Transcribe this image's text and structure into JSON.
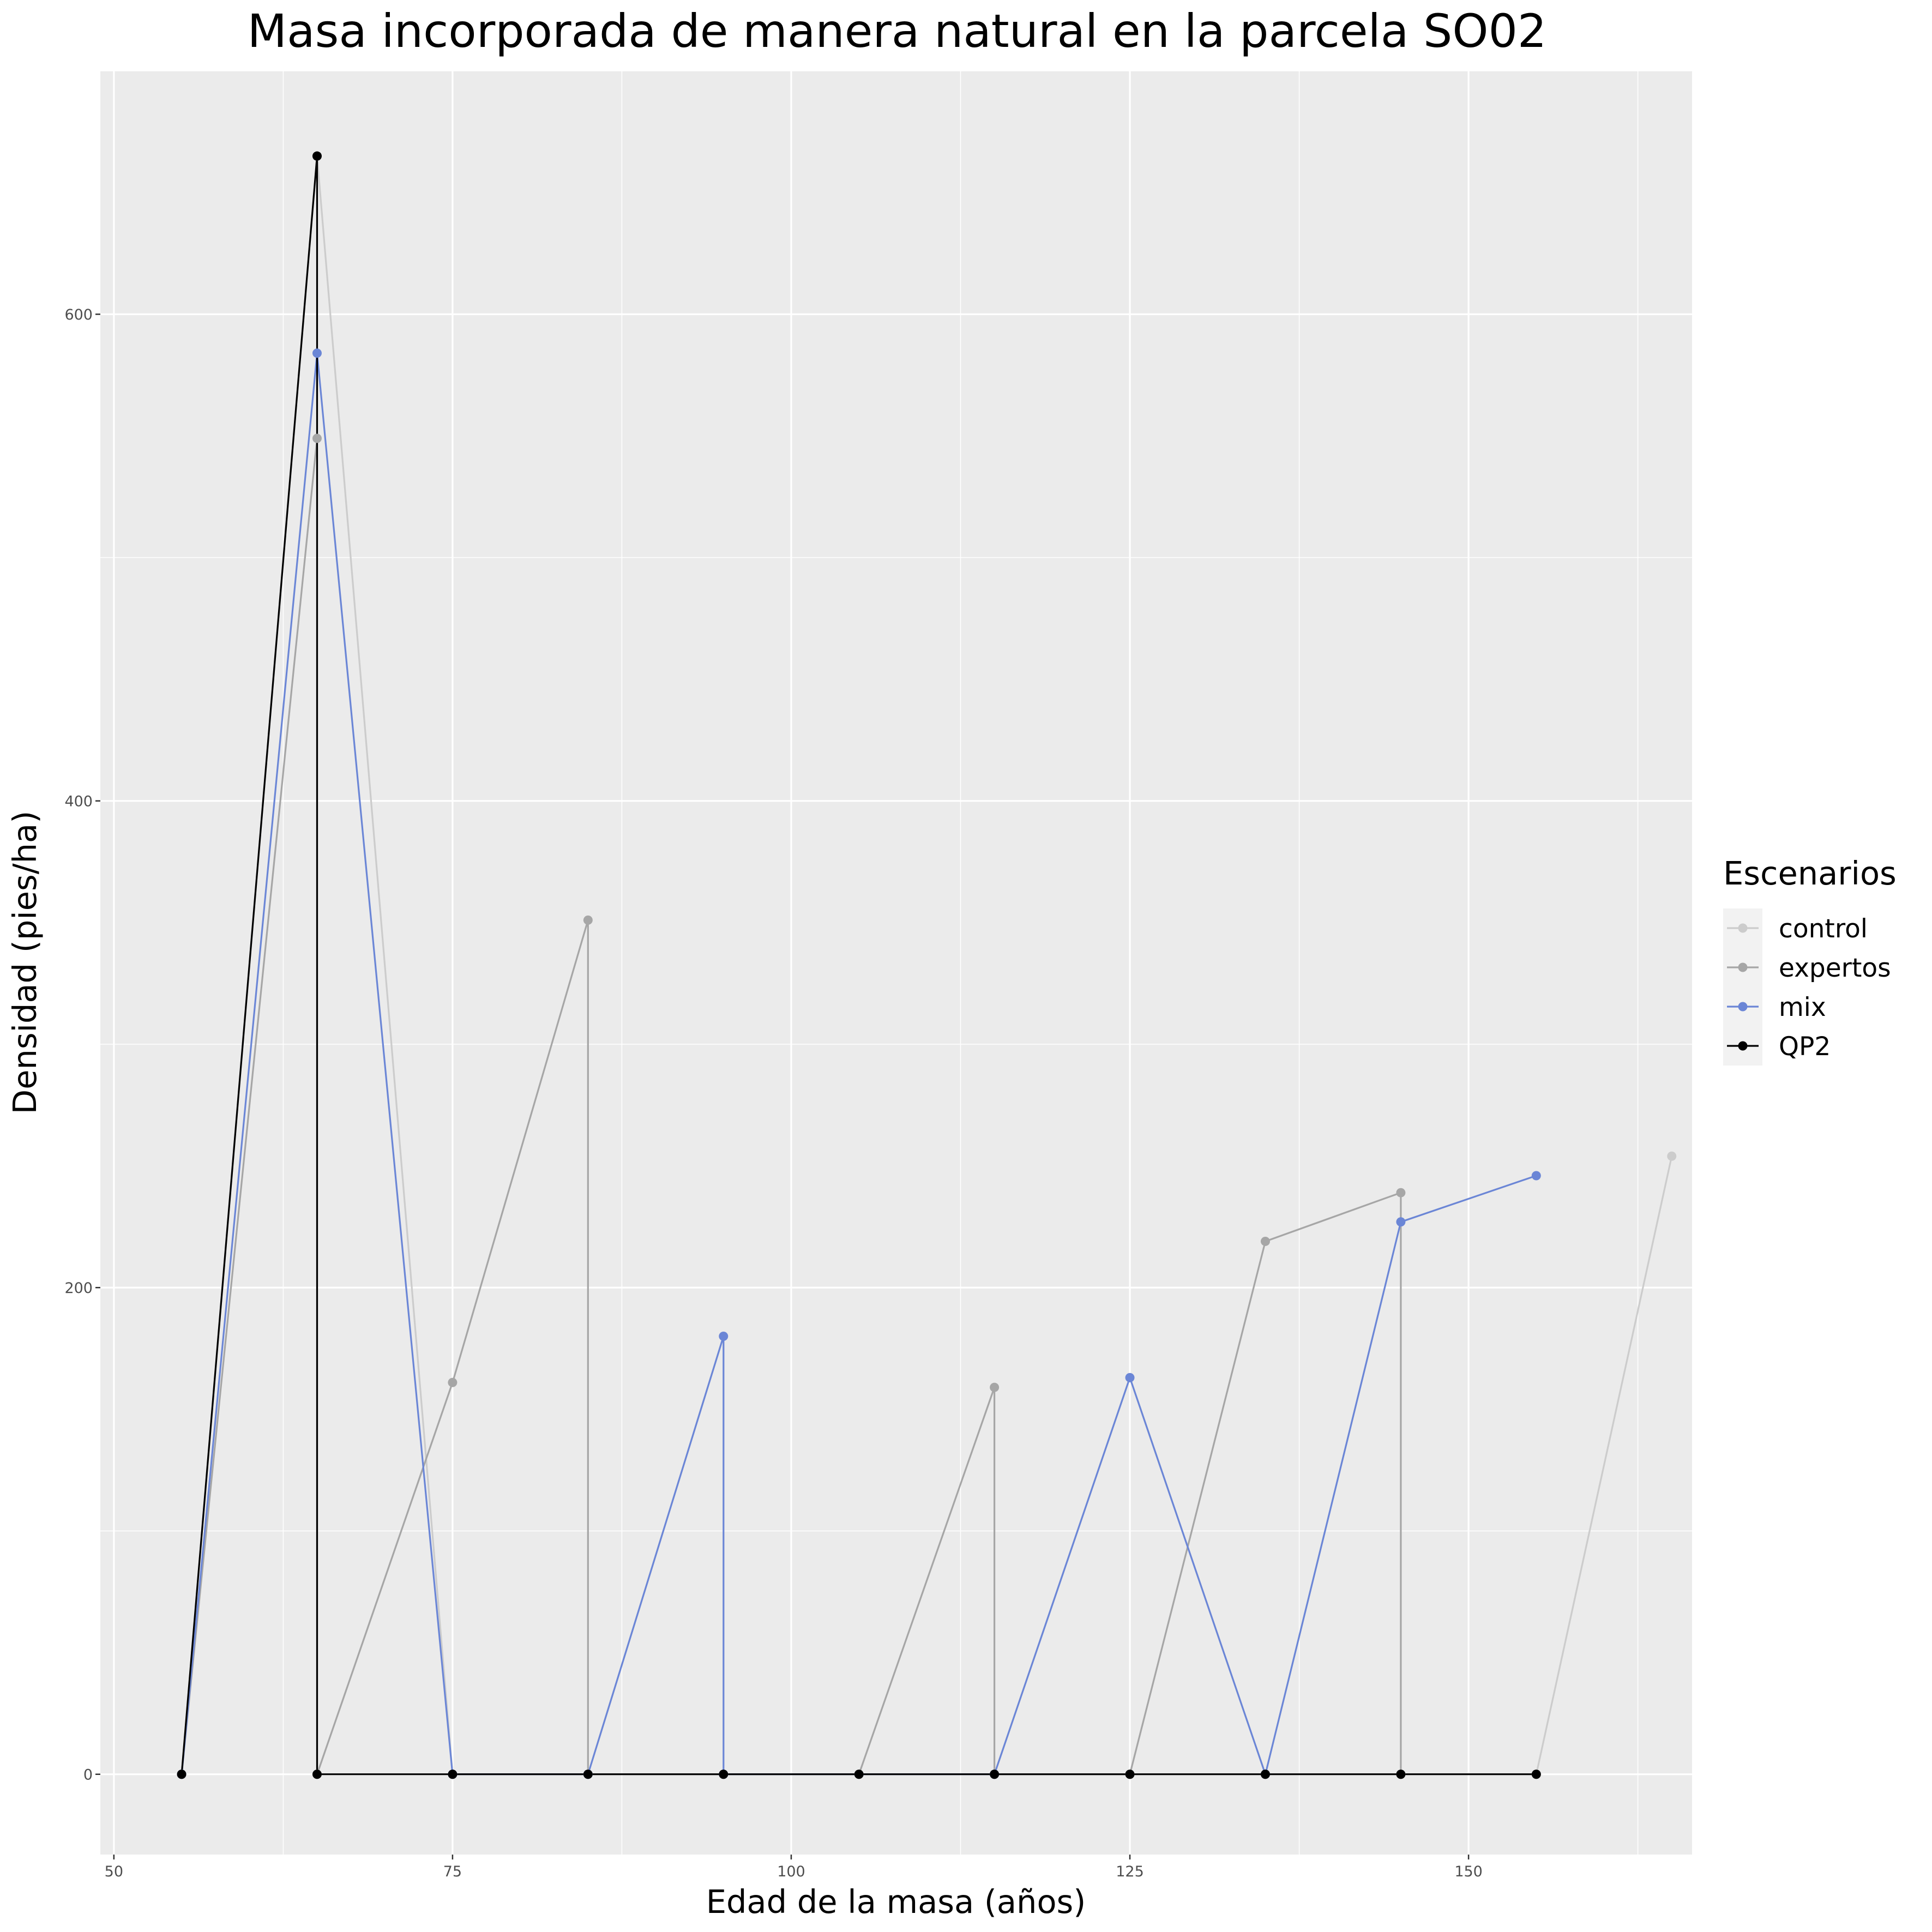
{
  "chart_data": {
    "type": "line",
    "title": "Masa incorporada de manera natural en la parcela SO02",
    "xlabel": "Edad de la masa (años)",
    "ylabel": "Densidad (pies/ha)",
    "xlim": [
      49,
      166.5
    ],
    "ylim": [
      -33,
      700
    ],
    "x_ticks": [
      50,
      75,
      100,
      125,
      150
    ],
    "y_ticks": [
      0,
      200,
      400,
      600
    ],
    "x_tick_labels": [
      "50",
      "75",
      "100",
      "125",
      "150"
    ],
    "y_tick_labels": [
      "0",
      "200",
      "400",
      "600"
    ],
    "grid": true,
    "legend": {
      "title": "Escenarios",
      "position": "right"
    },
    "series": [
      {
        "name": "control",
        "color": "#cccccc",
        "points": [
          [
            55,
            0
          ],
          [
            65,
            665
          ],
          [
            75,
            0
          ],
          [
            155,
            0
          ],
          [
            165,
            254
          ]
        ]
      },
      {
        "name": "expertos",
        "color": "#a6a6a6",
        "points": [
          [
            55,
            0
          ],
          [
            65,
            549
          ],
          [
            65,
            0
          ],
          [
            75,
            161
          ],
          [
            85,
            351
          ],
          [
            85,
            0
          ],
          [
            105,
            0
          ],
          [
            115,
            159
          ],
          [
            115,
            0
          ],
          [
            125,
            0
          ],
          [
            135,
            219
          ],
          [
            145,
            239
          ],
          [
            145,
            0
          ]
        ]
      },
      {
        "name": "mix",
        "color": "#6b86d6",
        "points": [
          [
            55,
            0
          ],
          [
            65,
            584
          ],
          [
            75,
            0
          ],
          [
            85,
            0
          ],
          [
            95,
            180
          ],
          [
            95,
            0
          ],
          [
            115,
            0
          ],
          [
            125,
            163
          ],
          [
            135,
            0
          ],
          [
            145,
            227
          ],
          [
            155,
            246
          ]
        ]
      },
      {
        "name": "QP2",
        "color": "#000000",
        "points": [
          [
            55,
            0
          ],
          [
            65,
            665
          ],
          [
            65,
            0
          ],
          [
            75,
            0
          ],
          [
            85,
            0
          ],
          [
            95,
            0
          ],
          [
            105,
            0
          ],
          [
            115,
            0
          ],
          [
            125,
            0
          ],
          [
            135,
            0
          ],
          [
            145,
            0
          ],
          [
            155,
            0
          ]
        ]
      }
    ]
  }
}
